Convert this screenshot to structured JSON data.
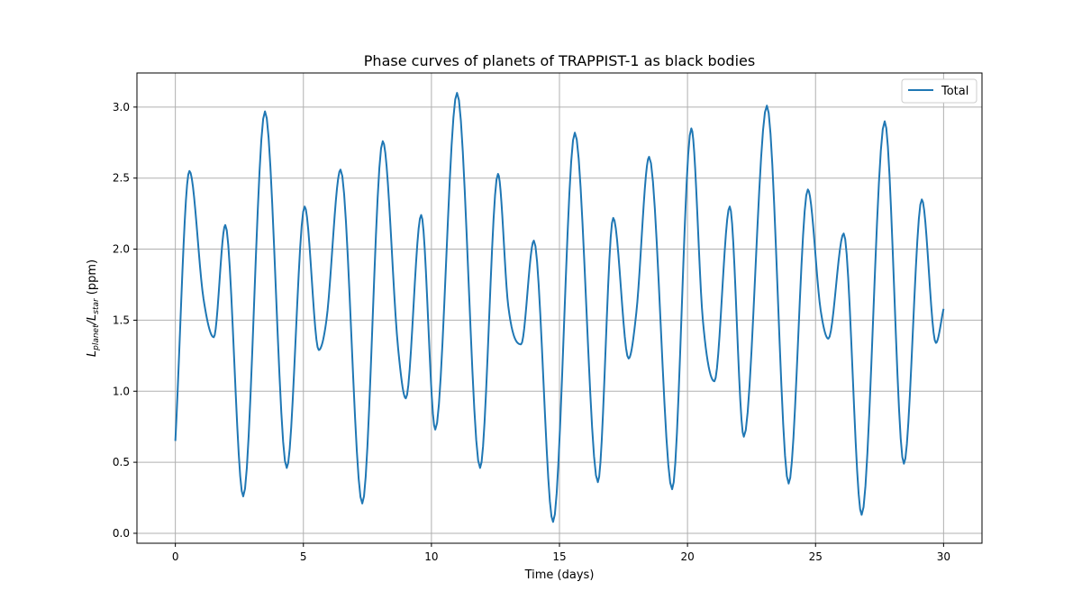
{
  "chart_data": {
    "type": "line",
    "title": "Phase curves of planets of TRAPPIST-1 as black bodies",
    "xlabel": "Time (days)",
    "ylabel": {
      "main_1": "L",
      "sub_1": "planet",
      "slash": "/L",
      "sub_2": "star",
      "unit": " (ppm)"
    },
    "xlim": [
      -1.5,
      31.5
    ],
    "ylim": [
      -0.07,
      3.24
    ],
    "xticks": [
      0,
      5,
      10,
      15,
      20,
      25,
      30
    ],
    "yticks": [
      0.0,
      0.5,
      1.0,
      1.5,
      2.0,
      2.5,
      3.0
    ],
    "xtick_labels": [
      "0",
      "5",
      "10",
      "15",
      "20",
      "25",
      "30"
    ],
    "ytick_labels": [
      "0.0",
      "0.5",
      "1.0",
      "1.5",
      "2.0",
      "2.5",
      "3.0"
    ],
    "grid": true,
    "legend": {
      "position": "top-right",
      "entries": [
        "Total"
      ]
    },
    "series": [
      {
        "name": "Total",
        "color": "#1f77b4",
        "points": [
          [
            0.0,
            0.65
          ],
          [
            0.55,
            2.55
          ],
          [
            1.1,
            1.65
          ],
          [
            1.5,
            1.38
          ],
          [
            1.95,
            2.17
          ],
          [
            2.65,
            0.26
          ],
          [
            3.5,
            2.97
          ],
          [
            4.35,
            0.46
          ],
          [
            5.05,
            2.3
          ],
          [
            5.6,
            1.29
          ],
          [
            5.9,
            1.5
          ],
          [
            6.45,
            2.56
          ],
          [
            7.3,
            0.21
          ],
          [
            8.1,
            2.76
          ],
          [
            8.7,
            1.3
          ],
          [
            9.0,
            0.95
          ],
          [
            9.6,
            2.24
          ],
          [
            10.15,
            0.73
          ],
          [
            11.0,
            3.1
          ],
          [
            11.9,
            0.46
          ],
          [
            12.6,
            2.53
          ],
          [
            13.0,
            1.6
          ],
          [
            13.5,
            1.33
          ],
          [
            14.0,
            2.06
          ],
          [
            14.75,
            0.08
          ],
          [
            15.6,
            2.82
          ],
          [
            16.5,
            0.36
          ],
          [
            17.1,
            2.22
          ],
          [
            17.7,
            1.23
          ],
          [
            18.0,
            1.55
          ],
          [
            18.5,
            2.65
          ],
          [
            19.4,
            0.31
          ],
          [
            20.15,
            2.85
          ],
          [
            20.6,
            1.5
          ],
          [
            21.05,
            1.07
          ],
          [
            21.65,
            2.3
          ],
          [
            22.2,
            0.68
          ],
          [
            23.1,
            3.01
          ],
          [
            23.95,
            0.35
          ],
          [
            24.7,
            2.42
          ],
          [
            25.2,
            1.57
          ],
          [
            25.5,
            1.37
          ],
          [
            26.1,
            2.11
          ],
          [
            26.8,
            0.13
          ],
          [
            27.7,
            2.9
          ],
          [
            28.45,
            0.49
          ],
          [
            29.15,
            2.35
          ],
          [
            29.7,
            1.34
          ],
          [
            30.0,
            1.58
          ]
        ]
      }
    ]
  }
}
